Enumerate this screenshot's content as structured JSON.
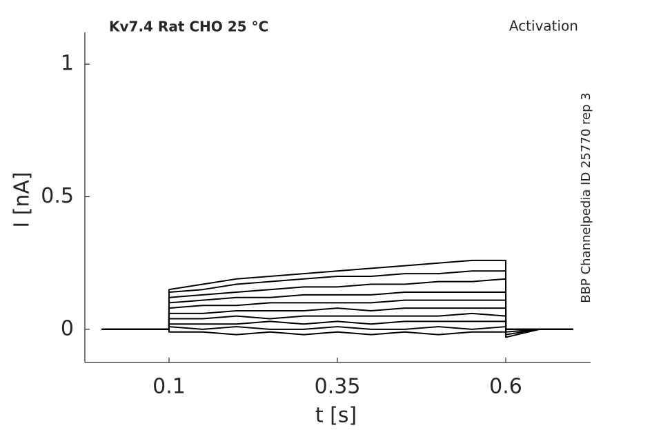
{
  "chart_data": {
    "type": "line",
    "title": "Kv7.4  Rat  CHO  25 °C",
    "annotations": [
      "Activation",
      "BBP Channelpedia ID 25770 rep 3"
    ],
    "xlabel": "t [s]",
    "ylabel": "I [nA]",
    "xlim": [
      -0.025,
      0.726
    ],
    "ylim": [
      -0.125,
      1.12
    ],
    "xticks": [
      0.1,
      0.35,
      0.6
    ],
    "yticks": [
      0,
      0.5,
      1
    ],
    "grid": false,
    "x": [
      0,
      0.05,
      0.0999,
      0.1,
      0.15,
      0.2,
      0.25,
      0.3,
      0.35,
      0.4,
      0.45,
      0.5,
      0.55,
      0.6,
      0.6001,
      0.65,
      0.7
    ],
    "series": [
      {
        "color": "#000000",
        "values": [
          0,
          0,
          0,
          0.15,
          0.17,
          0.19,
          0.2,
          0.21,
          0.22,
          0.23,
          0.24,
          0.25,
          0.26,
          0.26,
          -0.03,
          0,
          0
        ]
      },
      {
        "color": "#000000",
        "values": [
          0,
          0,
          0,
          0.14,
          0.15,
          0.17,
          0.18,
          0.19,
          0.2,
          0.2,
          0.21,
          0.21,
          0.22,
          0.22,
          -0.02,
          0,
          0
        ]
      },
      {
        "color": "#000000",
        "values": [
          0,
          0,
          0,
          0.12,
          0.13,
          0.14,
          0.15,
          0.16,
          0.16,
          0.17,
          0.17,
          0.18,
          0.18,
          0.19,
          -0.01,
          0,
          0
        ]
      },
      {
        "color": "#000000",
        "values": [
          0,
          0,
          0,
          0.1,
          0.11,
          0.12,
          0.12,
          0.13,
          0.13,
          0.13,
          0.14,
          0.14,
          0.14,
          0.14,
          0,
          0,
          0
        ]
      },
      {
        "color": "#000000",
        "values": [
          0,
          0,
          0,
          0.08,
          0.09,
          0.09,
          0.1,
          0.1,
          0.1,
          0.1,
          0.11,
          0.11,
          0.11,
          0.11,
          0,
          0,
          0
        ]
      },
      {
        "color": "#000000",
        "values": [
          0,
          0,
          0,
          0.06,
          0.06,
          0.07,
          0.07,
          0.07,
          0.08,
          0.07,
          0.08,
          0.08,
          0.08,
          0.08,
          0,
          0,
          0
        ]
      },
      {
        "color": "#000000",
        "values": [
          0,
          0,
          0,
          0.04,
          0.04,
          0.05,
          0.04,
          0.05,
          0.05,
          0.05,
          0.05,
          0.05,
          0.06,
          0.05,
          0,
          0,
          0
        ]
      },
      {
        "color": "#000000",
        "values": [
          0,
          0,
          0,
          0.02,
          0.02,
          0.02,
          0.03,
          0.02,
          0.03,
          0.02,
          0.03,
          0.03,
          0.03,
          0.03,
          0,
          0,
          0
        ]
      },
      {
        "color": "#000000",
        "values": [
          0,
          0,
          0,
          0.01,
          0,
          0.01,
          0,
          0,
          0.01,
          0,
          0,
          0.01,
          0,
          0.01,
          0,
          0,
          0
        ]
      },
      {
        "color": "#000000",
        "values": [
          0,
          0,
          0,
          -0.01,
          -0.01,
          -0.02,
          -0.01,
          -0.02,
          -0.01,
          -0.02,
          -0.01,
          -0.02,
          -0.01,
          -0.01,
          0,
          0,
          0
        ]
      }
    ]
  }
}
